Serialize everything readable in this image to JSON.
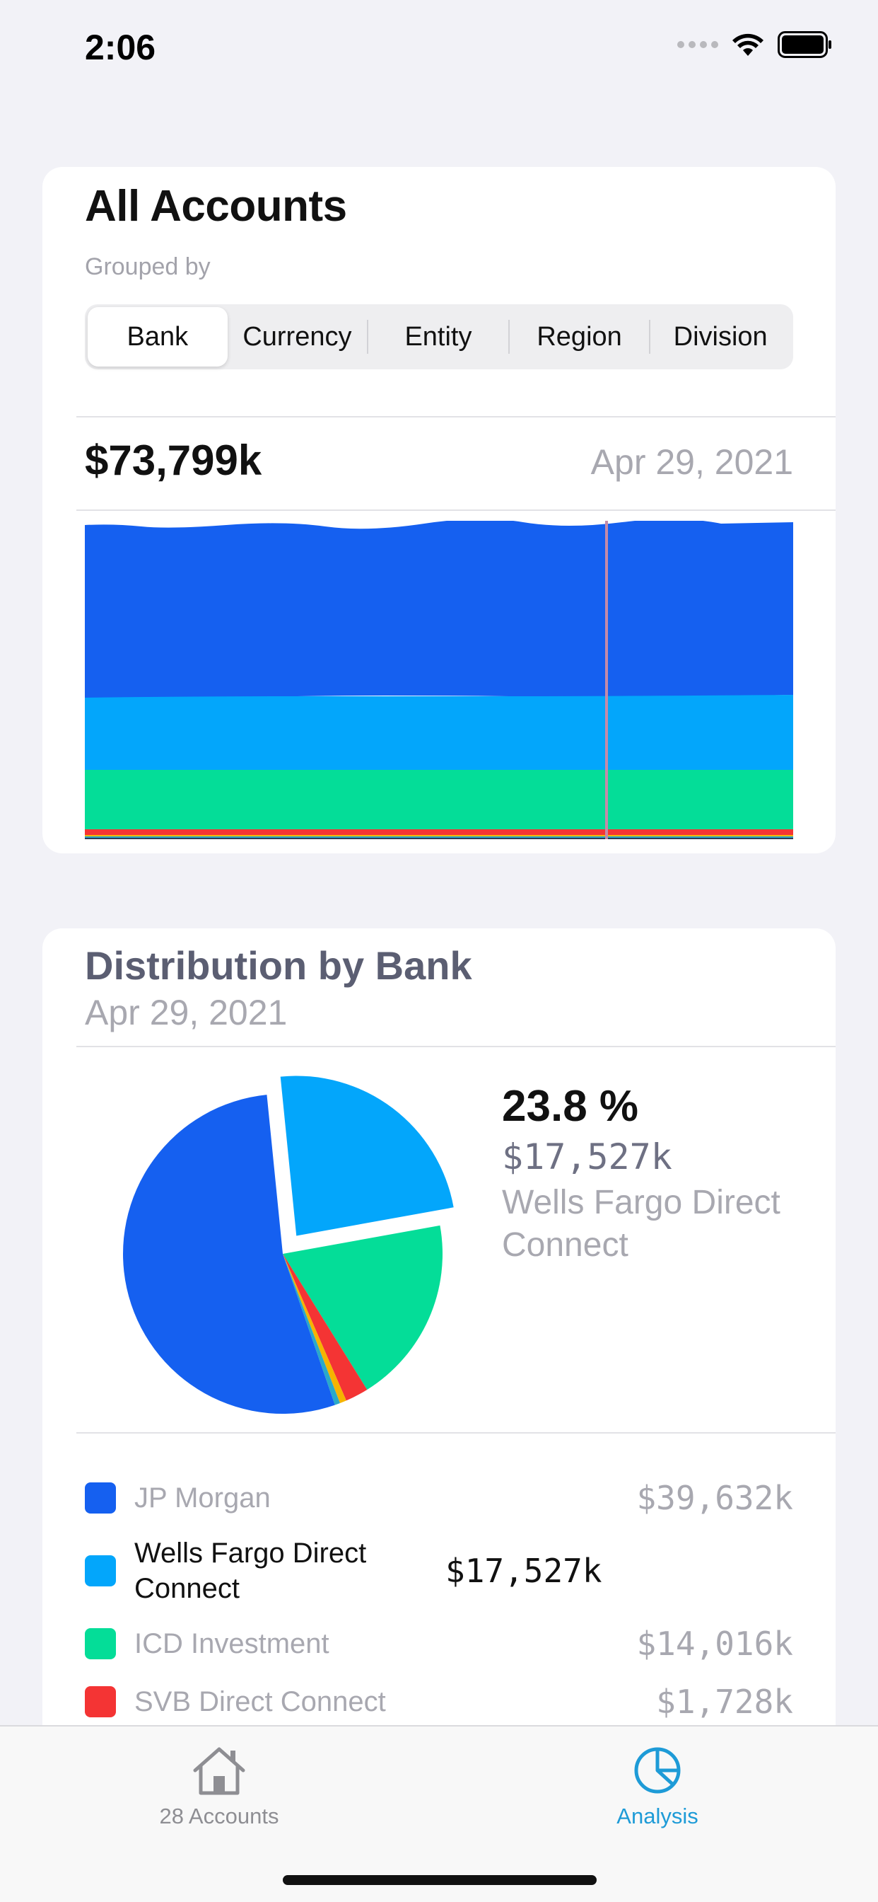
{
  "status_bar": {
    "time": "2:06"
  },
  "accounts_card": {
    "title": "All Accounts",
    "grouped_by_label": "Grouped by",
    "segments": [
      "Bank",
      "Currency",
      "Entity",
      "Region",
      "Division"
    ],
    "selected_segment": "Bank",
    "total_value": "$73,799k",
    "date": "Apr 29, 2021"
  },
  "distribution_card": {
    "title": "Distribution by Bank",
    "date": "Apr 29, 2021",
    "selected": {
      "percent": "23.8 %",
      "amount": "$17,527k",
      "name": "Wells Fargo Direct Connect"
    },
    "legend": [
      {
        "name": "JP Morgan",
        "value": "$39,632k",
        "color": "#1560f0"
      },
      {
        "name": "Wells Fargo Direct Connect",
        "value": "$17,527k",
        "color": "#03a6fb"
      },
      {
        "name": "ICD Investment",
        "value": "$14,016k",
        "color": "#04dd98"
      },
      {
        "name": "SVB Direct Connect",
        "value": "$1,728k",
        "color": "#f43434"
      }
    ]
  },
  "chart_data": {
    "type": "pie",
    "title": "Distribution by Bank",
    "slices": [
      {
        "label": "JP Morgan",
        "value": 39632,
        "color": "#1560f0"
      },
      {
        "label": "Wells Fargo Direct Connect",
        "value": 17527,
        "color": "#03a6fb",
        "exploded": true
      },
      {
        "label": "ICD Investment",
        "value": 14016,
        "color": "#04dd98"
      },
      {
        "label": "SVB Direct Connect",
        "value": 1728,
        "color": "#f43434"
      },
      {
        "label": "",
        "value": 500,
        "color": "#f5b400"
      },
      {
        "label": "",
        "value": 396,
        "color": "#2aa9c9"
      }
    ]
  },
  "tab_bar": {
    "tabs": [
      {
        "label": "28 Accounts",
        "icon": "house-icon",
        "active": false
      },
      {
        "label": "Analysis",
        "icon": "pie-chart-icon",
        "active": true
      }
    ]
  },
  "colors": {
    "accent": "#1e9bd7",
    "jp_morgan": "#1560f0",
    "wells_fargo": "#03a6fb",
    "icd": "#04dd98",
    "svb": "#f43434"
  }
}
